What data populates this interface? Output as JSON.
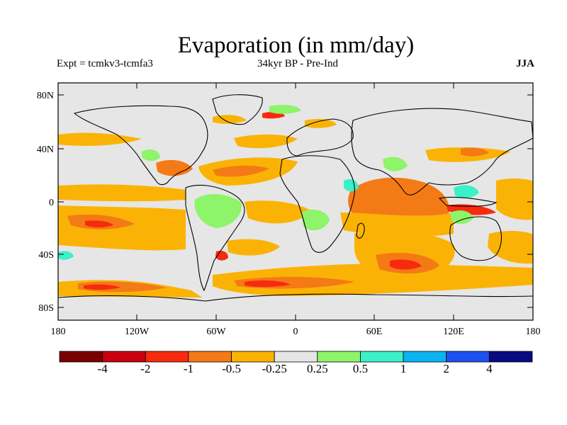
{
  "header": {
    "title": "Evaporation (in mm/day)",
    "left": "Expt = tcmkv3-tcmfa3",
    "center": "34kyr BP - Pre-Ind",
    "right": "JJA"
  },
  "map": {
    "projection": "cylindrical equidistant",
    "lon_range": [
      -180,
      180
    ],
    "lat_range": [
      -90,
      90
    ],
    "y_ticks": [
      "80N",
      "40N",
      "0",
      "40S",
      "80S"
    ],
    "x_ticks": [
      "180",
      "120W",
      "60W",
      "0",
      "60E",
      "120E",
      "180"
    ],
    "background_color": "#e6e6e6"
  },
  "colorbar": {
    "colors": [
      "#7a0000",
      "#c8000f",
      "#f72a0e",
      "#f47a16",
      "#fab305",
      "#e6e6e6",
      "#8ef469",
      "#3cf0c8",
      "#0ab4f0",
      "#1e50f0",
      "#0a0a82"
    ],
    "labels": [
      "-4",
      "-2",
      "-1",
      "-0.5",
      "-0.25",
      "0.25",
      "0.5",
      "1",
      "2",
      "4"
    ]
  }
}
